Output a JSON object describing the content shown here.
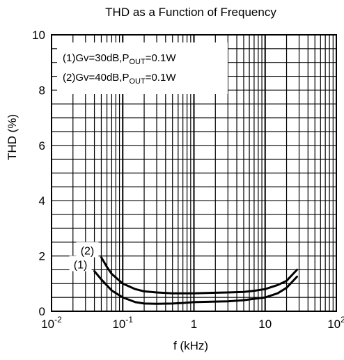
{
  "chart_data": {
    "type": "line",
    "title": "THD as a Function of Frequency",
    "xlabel": "f (kHz)",
    "ylabel": "THD (%)",
    "xscale": "log",
    "xlim": [
      0.01,
      100
    ],
    "ylim": [
      0,
      10
    ],
    "grid": true,
    "x_ticks": [
      {
        "base": "10",
        "exp": "-2"
      },
      {
        "base": "10",
        "exp": "-1"
      },
      {
        "base": "1",
        "exp": ""
      },
      {
        "base": "10",
        "exp": ""
      },
      {
        "base": "10",
        "exp": "2"
      }
    ],
    "y_ticks": [
      "0",
      "2",
      "4",
      "6",
      "8",
      "10"
    ],
    "legend": {
      "placement": "top-left",
      "entries": [
        {
          "prefix": "(1)Gv=30dB,P",
          "sub": "OUT",
          "suffix": "=0.1W"
        },
        {
          "prefix": "(2)Gv=40dB,P",
          "sub": "OUT",
          "suffix": "=0.1W"
        }
      ]
    },
    "series": [
      {
        "name": "(1)",
        "color": "#000000",
        "x": [
          0.04,
          0.05,
          0.07,
          0.1,
          0.15,
          0.2,
          0.3,
          0.5,
          0.7,
          1,
          2,
          3,
          5,
          7,
          10,
          15,
          20,
          28
        ],
        "y": [
          1.45,
          1.15,
          0.75,
          0.5,
          0.33,
          0.28,
          0.27,
          0.28,
          0.3,
          0.33,
          0.35,
          0.36,
          0.4,
          0.45,
          0.5,
          0.65,
          0.85,
          1.25
        ]
      },
      {
        "name": "(2)",
        "color": "#000000",
        "x": [
          0.05,
          0.06,
          0.07,
          0.1,
          0.15,
          0.2,
          0.3,
          0.5,
          0.7,
          1,
          2,
          3,
          5,
          7,
          10,
          15,
          20,
          28
        ],
        "y": [
          1.95,
          1.6,
          1.35,
          1.0,
          0.8,
          0.72,
          0.68,
          0.65,
          0.65,
          0.65,
          0.67,
          0.68,
          0.7,
          0.74,
          0.8,
          0.95,
          1.1,
          1.5
        ]
      }
    ]
  }
}
